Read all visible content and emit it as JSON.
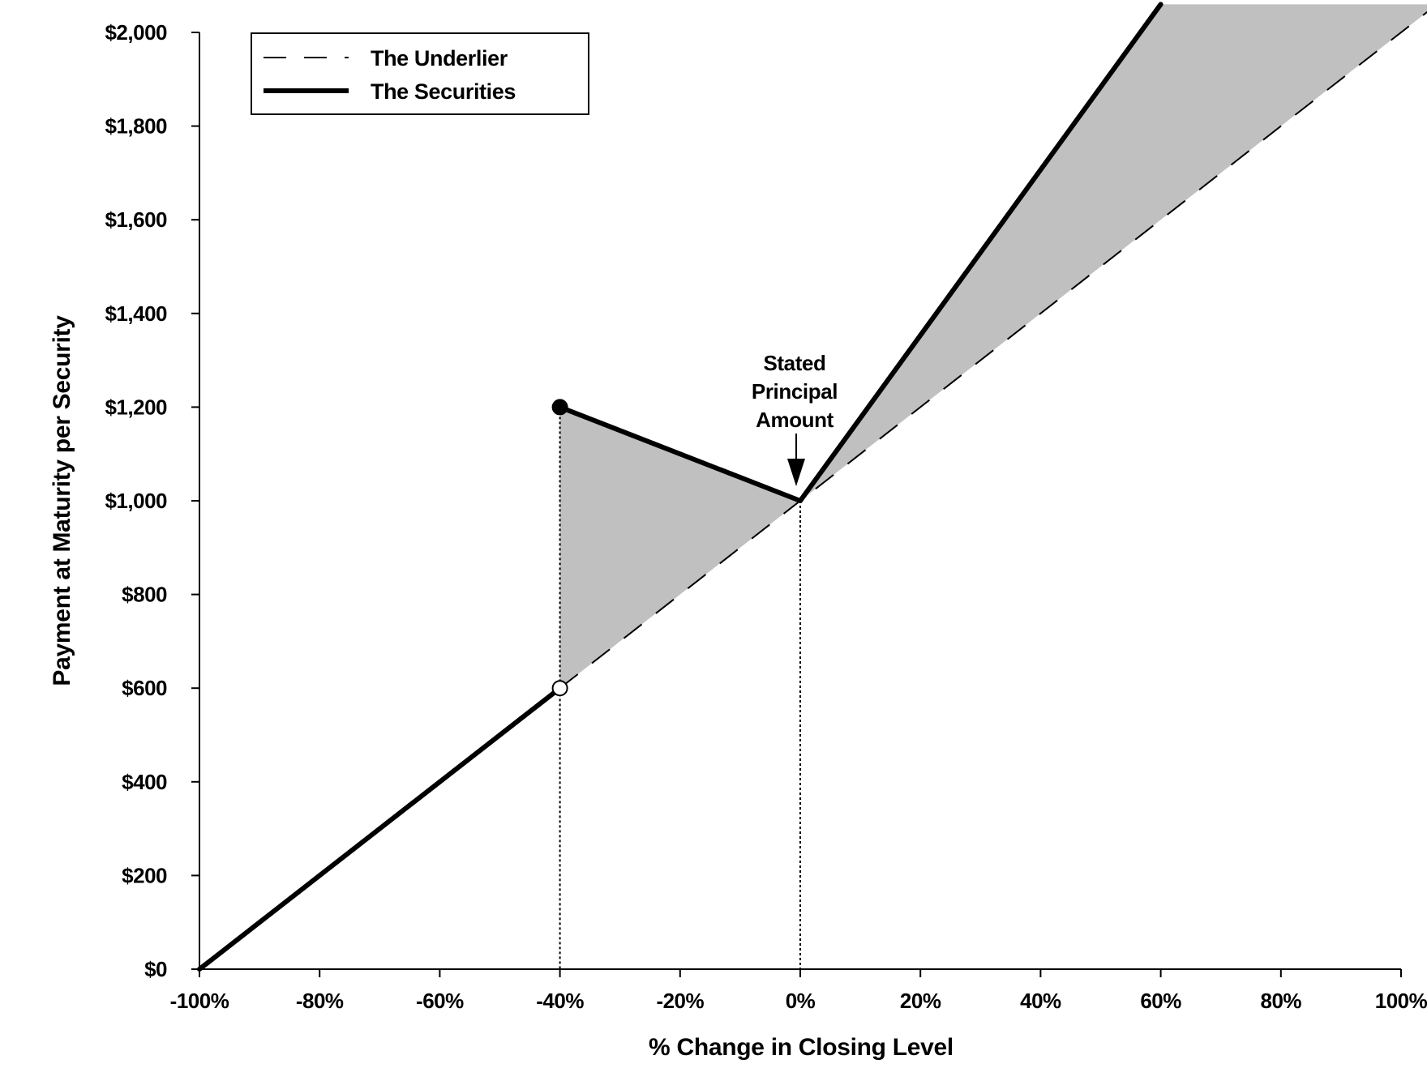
{
  "chart_data": {
    "type": "line",
    "title": "",
    "xlabel": "% Change in Closing Level",
    "ylabel": "Payment at Maturity per Security",
    "xlim": [
      -100,
      100
    ],
    "ylim": [
      0,
      2000
    ],
    "x_ticks": [
      -100,
      -80,
      -60,
      -40,
      -20,
      0,
      20,
      40,
      60,
      80,
      100
    ],
    "x_tick_labels": [
      "-100%",
      "-80%",
      "-60%",
      "-40%",
      "-20%",
      "0%",
      "20%",
      "40%",
      "60%",
      "80%",
      "100%"
    ],
    "y_ticks": [
      0,
      200,
      400,
      600,
      800,
      1000,
      1200,
      1400,
      1600,
      1800,
      2000
    ],
    "y_tick_labels": [
      "$0",
      "$200",
      "$400",
      "$600",
      "$800",
      "$1,000",
      "$1,200",
      "$1,400",
      "$1,600",
      "$1,800",
      "$2,000"
    ],
    "grid": false,
    "legend_position": "top-left",
    "series": [
      {
        "name": "The Underlier",
        "style": "dashed",
        "x": [
          -100,
          100
        ],
        "y": [
          0,
          2000
        ]
      },
      {
        "name": "The Securities",
        "style": "solid",
        "segments": [
          {
            "x": [
              -100,
              -40
            ],
            "y": [
              0,
              600
            ]
          },
          {
            "x": [
              -40,
              0
            ],
            "y": [
              1200,
              1000
            ]
          },
          {
            "x": [
              0,
              60
            ],
            "y": [
              1000,
              2060
            ]
          }
        ]
      }
    ],
    "markers": [
      {
        "x": -40,
        "y": 1200,
        "fill": "filled"
      },
      {
        "x": -40,
        "y": 600,
        "fill": "open"
      }
    ],
    "reference_lines": [
      {
        "x": -40,
        "style": "dotted"
      },
      {
        "x": 0,
        "style": "dotted"
      }
    ],
    "shaded_regions_color": "#c0c0c0",
    "annotations": [
      {
        "text_lines": [
          "Stated",
          "Principal",
          "Amount"
        ],
        "x": 0,
        "y": 1000,
        "arrow": "down"
      }
    ]
  }
}
